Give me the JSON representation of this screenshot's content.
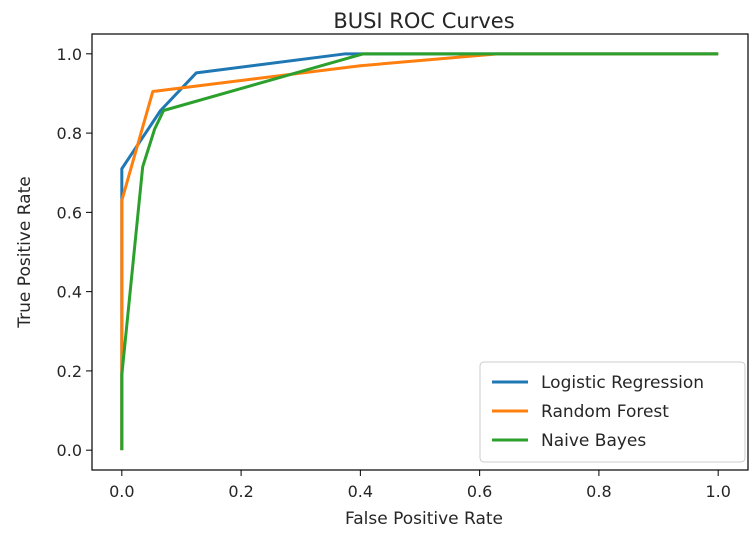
{
  "chart_data": {
    "type": "line",
    "title": "BUSI ROC Curves",
    "xlabel": "False Positive Rate",
    "ylabel": "True Positive Rate",
    "xlim": [
      -0.05,
      1.05
    ],
    "ylim": [
      -0.05,
      1.05
    ],
    "xticks": [
      0.0,
      0.2,
      0.4,
      0.6,
      0.8,
      1.0
    ],
    "xtick_labels": [
      "0.0",
      "0.2",
      "0.4",
      "0.6",
      "0.8",
      "1.0"
    ],
    "yticks": [
      0.0,
      0.2,
      0.4,
      0.6,
      0.8,
      1.0
    ],
    "ytick_labels": [
      "0.0",
      "0.2",
      "0.4",
      "0.6",
      "0.8",
      "1.0"
    ],
    "grid": false,
    "legend_position": "lower-right",
    "series": [
      {
        "name": "Logistic Regression",
        "color": "#1f77b4",
        "x": [
          0.0,
          0.0,
          0.065,
          0.125,
          0.375,
          0.39,
          1.0
        ],
        "y": [
          0.0,
          0.71,
          0.857,
          0.952,
          1.0,
          1.0,
          1.0
        ]
      },
      {
        "name": "Random Forest",
        "color": "#ff7f0e",
        "x": [
          0.0,
          0.0,
          0.052,
          0.4,
          0.63,
          1.0
        ],
        "y": [
          0.0,
          0.63,
          0.905,
          0.97,
          1.0,
          1.0
        ]
      },
      {
        "name": "Naive Bayes",
        "color": "#2ca02c",
        "x": [
          0.0,
          0.0,
          0.035,
          0.055,
          0.07,
          0.405,
          1.0
        ],
        "y": [
          0.0,
          0.19,
          0.715,
          0.81,
          0.857,
          1.0,
          1.0
        ]
      }
    ]
  }
}
